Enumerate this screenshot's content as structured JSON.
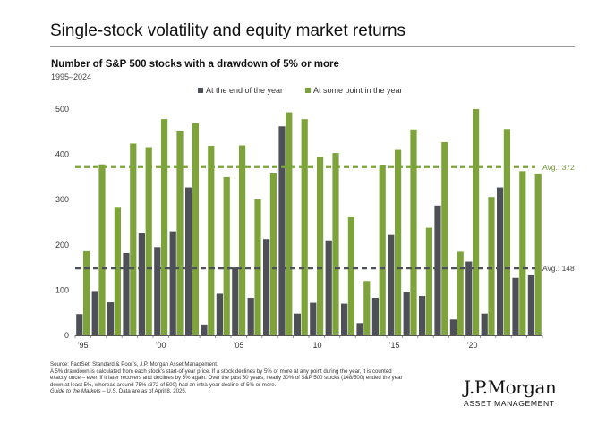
{
  "main_title": "Single-stock volatility and equity market returns",
  "chart_data": {
    "type": "bar",
    "title": "Number of S&P 500 stocks with a drawdown of 5%  or more",
    "subtitle": "1995–2024",
    "years": [
      1995,
      1996,
      1997,
      1998,
      1999,
      2000,
      2001,
      2002,
      2003,
      2004,
      2005,
      2006,
      2007,
      2008,
      2009,
      2010,
      2011,
      2012,
      2013,
      2014,
      2015,
      2016,
      2017,
      2018,
      2019,
      2020,
      2021,
      2022,
      2023,
      2024
    ],
    "x_tick_labels": [
      {
        "year": 1995,
        "label": "'95"
      },
      {
        "year": 2000,
        "label": "'00"
      },
      {
        "year": 2005,
        "label": "'05"
      },
      {
        "year": 2010,
        "label": "'10"
      },
      {
        "year": 2015,
        "label": "'15"
      },
      {
        "year": 2020,
        "label": "'20"
      }
    ],
    "y_ticks": [
      0,
      100,
      200,
      300,
      400,
      500
    ],
    "ylim": [
      0,
      500
    ],
    "legend_position": "top",
    "series": [
      {
        "name": "At the end of the year",
        "color": "#4d5057",
        "values": [
          47,
          98,
          73,
          182,
          226,
          195,
          230,
          327,
          24,
          92,
          150,
          83,
          213,
          462,
          48,
          72,
          210,
          70,
          27,
          83,
          222,
          95,
          87,
          287,
          35,
          163,
          48,
          327,
          127,
          133
        ]
      },
      {
        "name": "At some point in the year",
        "color": "#7ea33a",
        "values": [
          186,
          378,
          282,
          424,
          416,
          478,
          451,
          469,
          419,
          350,
          420,
          301,
          358,
          493,
          478,
          394,
          403,
          261,
          120,
          376,
          410,
          455,
          238,
          427,
          185,
          500,
          306,
          456,
          363,
          356
        ]
      }
    ],
    "averages": [
      {
        "label": "Avg.: 372",
        "value": 372,
        "color": "#7ea33a"
      },
      {
        "label": "Avg.: 148",
        "value": 148,
        "color": "#4d5057"
      }
    ]
  },
  "footnotes": {
    "source": "Source: FactSet, Standard & Poor’s, J.P. Morgan Asset Management.",
    "note_line1": "A 5% drawdown is calculated from each stock’s start-of-year price. If a stock declines by 5% or more at any point during the year, it is counted",
    "note_line2": "exactly once – even if it later recovers and declines by 5% again. Over the past 30 years, nearly 30% of S&P 500 stocks (148/500) ended the year",
    "note_line3": "down at least 5%, whereas around 75% (372 of 500) had an intra-year decline of 5% or more.",
    "guide_name": "Guide to the Markets",
    "guide_rest": " – U.S. Data are as of April 8, 2025."
  },
  "logo": {
    "name": "J.P.Morgan",
    "sub": "ASSET MANAGEMENT"
  }
}
